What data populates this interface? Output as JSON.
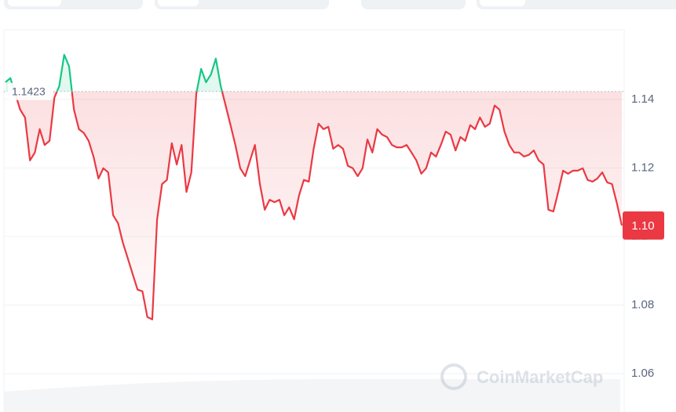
{
  "chart_data": {
    "type": "line",
    "title": "CoinMarketCap",
    "baseline": 1.1423,
    "current_price": {
      "value": 1.1032,
      "label": "1.10"
    },
    "ylim": [
      1.0488,
      1.1603
    ],
    "yticks": [
      1.06,
      1.08,
      1.1,
      1.12,
      1.14
    ],
    "grid": true,
    "series": [
      {
        "color": "#ea3943",
        "color_above": "#16c784",
        "values": [
          1.145,
          1.1462,
          1.1416,
          1.137,
          1.1347,
          1.1222,
          1.1245,
          1.1313,
          1.1267,
          1.1279,
          1.1405,
          1.1439,
          1.153,
          1.1496,
          1.137,
          1.1313,
          1.1302,
          1.1279,
          1.1233,
          1.1169,
          1.1199,
          1.1187,
          1.1062,
          1.1039,
          1.0982,
          1.0936,
          1.089,
          1.0845,
          1.084,
          1.0765,
          1.0758,
          1.105,
          1.1153,
          1.1165,
          1.1272,
          1.121,
          1.1267,
          1.113,
          1.1187,
          1.1416,
          1.1489,
          1.145,
          1.1473,
          1.1519,
          1.1439,
          1.1382,
          1.1325,
          1.1267,
          1.1199,
          1.1176,
          1.1222,
          1.1267,
          1.1153,
          1.1078,
          1.1107,
          1.11,
          1.1107,
          1.1062,
          1.1085,
          1.105,
          1.1119,
          1.1165,
          1.116,
          1.1256,
          1.1329,
          1.1313,
          1.132,
          1.1256,
          1.1267,
          1.1256,
          1.1206,
          1.1199,
          1.1176,
          1.1199,
          1.1283,
          1.1245,
          1.1313,
          1.1297,
          1.129,
          1.1267,
          1.126,
          1.126,
          1.1267,
          1.1245,
          1.1222,
          1.1183,
          1.1199,
          1.1245,
          1.1233,
          1.1267,
          1.1306,
          1.1297,
          1.1251,
          1.129,
          1.1279,
          1.1325,
          1.1313,
          1.1347,
          1.132,
          1.1329,
          1.1382,
          1.137,
          1.1306,
          1.1267,
          1.1245,
          1.1245,
          1.1233,
          1.1238,
          1.1251,
          1.1222,
          1.121,
          1.1078,
          1.1073,
          1.113,
          1.1192,
          1.1183,
          1.1192,
          1.1192,
          1.1199,
          1.1165,
          1.116,
          1.1169,
          1.1187,
          1.1158,
          1.1153,
          1.1096,
          1.1032
        ]
      }
    ]
  }
}
